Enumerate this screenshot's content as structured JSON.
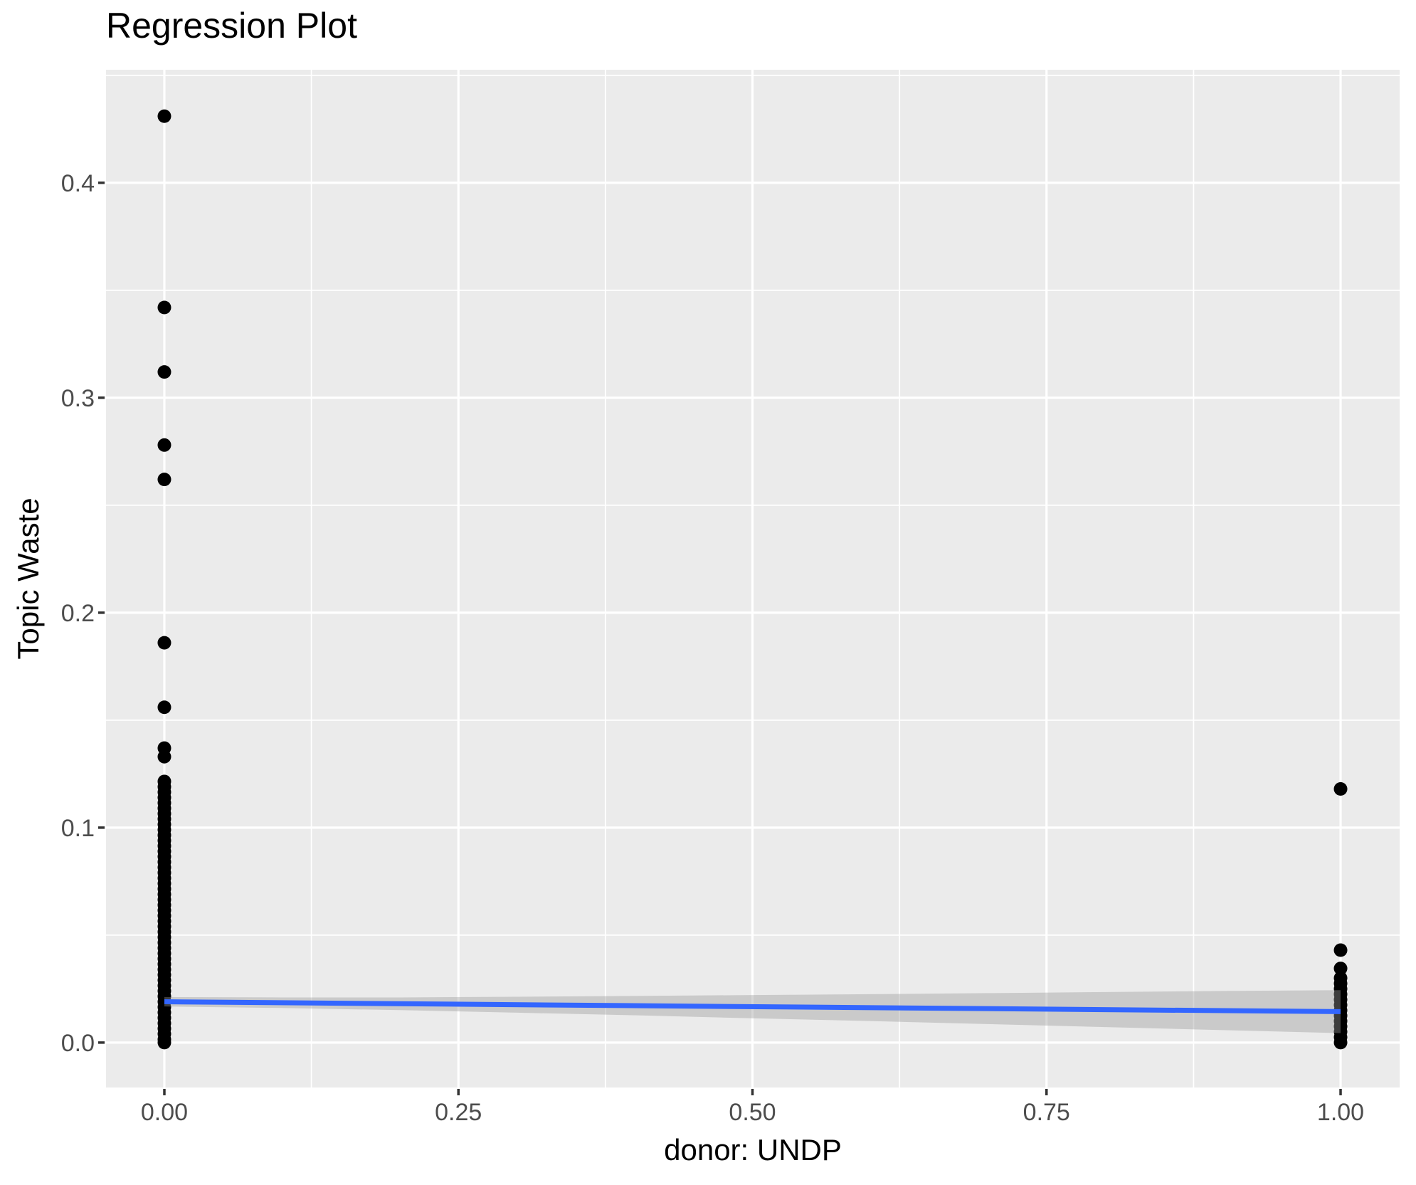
{
  "colors": {
    "panel_background": "#EBEBEB",
    "grid": "#FFFFFF",
    "point": "#000000",
    "regression_line": "#3366FF",
    "confidence_band": "rgba(153,153,153,0.4)",
    "tick_label": "#4D4D4D",
    "tick_mark": "#333333",
    "title": "#000000"
  },
  "chart_data": {
    "type": "scatter",
    "title": "Regression Plot",
    "xlabel": "donor: UNDP",
    "ylabel": "Topic Waste",
    "grid": true,
    "legend": false,
    "xlim": [
      -0.0496,
      1.0502
    ],
    "ylim": [
      -0.0209,
      0.4526
    ],
    "x_ticks": [
      {
        "label": "0.00",
        "value": 0
      },
      {
        "label": "0.25",
        "value": 0.25
      },
      {
        "label": "0.50",
        "value": 0.5
      },
      {
        "label": "0.75",
        "value": 0.75
      },
      {
        "label": "1.00",
        "value": 1
      }
    ],
    "y_ticks": [
      {
        "label": "0.0",
        "value": 0
      },
      {
        "label": "0.1",
        "value": 0.1
      },
      {
        "label": "0.2",
        "value": 0.2
      },
      {
        "label": "0.3",
        "value": 0.3
      },
      {
        "label": "0.4",
        "value": 0.4
      }
    ],
    "x_minor_gridlines": [
      0.125,
      0.375,
      0.625,
      0.875
    ],
    "y_minor_gridlines": [
      0.05,
      0.15,
      0.25,
      0.35,
      0.45
    ],
    "series": [
      {
        "name": "donor UNDP = 0",
        "x": 0,
        "values": [
          0.431,
          0.342,
          0.312,
          0.278,
          0.262,
          0.186,
          0.156,
          0.137,
          0.133,
          0.1215,
          0.119,
          0.1165,
          0.114,
          0.1115,
          0.109,
          0.1065,
          0.104,
          0.1015,
          0.099,
          0.0965,
          0.094,
          0.0915,
          0.089,
          0.0865,
          0.084,
          0.0815,
          0.079,
          0.0765,
          0.074,
          0.0715,
          0.069,
          0.0665,
          0.064,
          0.0615,
          0.059,
          0.0565,
          0.054,
          0.0515,
          0.049,
          0.0465,
          0.044,
          0.0415,
          0.039,
          0.0365,
          0.034,
          0.0315,
          0.029,
          0.0265,
          0.024,
          0.0215,
          0.019,
          0.0165,
          0.014,
          0.0115,
          0.009,
          0.0065,
          0.004,
          0.0015,
          0
        ]
      },
      {
        "name": "donor UNDP = 1",
        "x": 1,
        "values": [
          0.118,
          0.043,
          0.0345,
          0.03,
          0.0275,
          0.025,
          0.0225,
          0.02,
          0.0175,
          0.015,
          0.0125,
          0.01,
          0.0075,
          0.005,
          0.0025,
          0
        ]
      }
    ],
    "regression_line": {
      "x": [
        0,
        1
      ],
      "y": [
        0.019,
        0.0144
      ]
    },
    "confidence_band": {
      "x": [
        0,
        0.1,
        0.2,
        0.3,
        0.4,
        0.5,
        0.6,
        0.7,
        0.8,
        0.9,
        1.0
      ],
      "lower": [
        0.0168,
        0.0161,
        0.0151,
        0.0139,
        0.0127,
        0.0113,
        0.01,
        0.0086,
        0.0072,
        0.0058,
        0.0044
      ],
      "upper": [
        0.0212,
        0.021,
        0.021,
        0.0213,
        0.0217,
        0.0221,
        0.0225,
        0.023,
        0.0235,
        0.024,
        0.0244
      ]
    }
  }
}
